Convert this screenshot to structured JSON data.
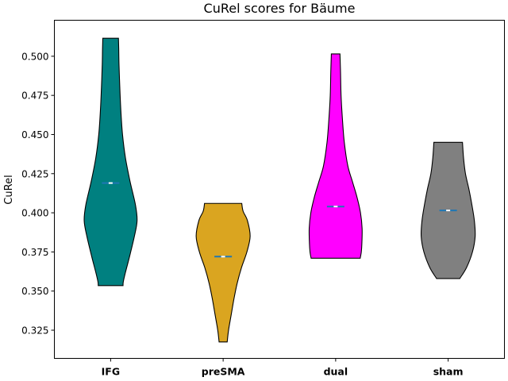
{
  "chart_data": {
    "type": "violin",
    "title": "CuRel scores for Bäume",
    "xlabel": "",
    "ylabel": "CuRel",
    "ylim": [
      0.307,
      0.523
    ],
    "yticks": [
      "0.325",
      "0.350",
      "0.375",
      "0.400",
      "0.425",
      "0.450",
      "0.475",
      "0.500"
    ],
    "grid": false,
    "median_color": "#1f77b4",
    "mean_marker_color": "#ffffff",
    "categories": [
      "IFG",
      "preSMA",
      "dual",
      "sham"
    ],
    "series": [
      {
        "category": "IFG",
        "color": "#008080",
        "min": 0.3535,
        "max": 0.5115,
        "median": 0.419,
        "profile": [
          [
            0.3535,
            0.46
          ],
          [
            0.356,
            0.47
          ],
          [
            0.362,
            0.55
          ],
          [
            0.372,
            0.7
          ],
          [
            0.385,
            0.88
          ],
          [
            0.395,
            0.98
          ],
          [
            0.405,
            0.92
          ],
          [
            0.42,
            0.72
          ],
          [
            0.435,
            0.55
          ],
          [
            0.45,
            0.44
          ],
          [
            0.465,
            0.38
          ],
          [
            0.48,
            0.34
          ],
          [
            0.495,
            0.31
          ],
          [
            0.505,
            0.3
          ],
          [
            0.5115,
            0.29
          ]
        ]
      },
      {
        "category": "preSMA",
        "color": "#DAA520",
        "min": 0.3175,
        "max": 0.406,
        "median": 0.372,
        "profile": [
          [
            0.3175,
            0.15
          ],
          [
            0.325,
            0.2
          ],
          [
            0.335,
            0.3
          ],
          [
            0.345,
            0.4
          ],
          [
            0.355,
            0.52
          ],
          [
            0.365,
            0.68
          ],
          [
            0.375,
            0.88
          ],
          [
            0.385,
            1.0
          ],
          [
            0.395,
            0.9
          ],
          [
            0.401,
            0.74
          ],
          [
            0.406,
            0.69
          ]
        ]
      },
      {
        "category": "dual",
        "color": "#FF00FF",
        "min": 0.371,
        "max": 0.5015,
        "median": 0.404,
        "profile": [
          [
            0.371,
            0.91
          ],
          [
            0.375,
            0.95
          ],
          [
            0.38,
            0.97
          ],
          [
            0.39,
            0.98
          ],
          [
            0.4,
            0.92
          ],
          [
            0.41,
            0.79
          ],
          [
            0.42,
            0.62
          ],
          [
            0.43,
            0.45
          ],
          [
            0.445,
            0.32
          ],
          [
            0.46,
            0.25
          ],
          [
            0.475,
            0.2
          ],
          [
            0.49,
            0.18
          ],
          [
            0.5015,
            0.16
          ]
        ]
      },
      {
        "category": "sham",
        "color": "#808080",
        "min": 0.358,
        "max": 0.445,
        "median": 0.4015,
        "profile": [
          [
            0.358,
            0.43
          ],
          [
            0.365,
            0.68
          ],
          [
            0.375,
            0.9
          ],
          [
            0.385,
            1.0
          ],
          [
            0.395,
            0.97
          ],
          [
            0.405,
            0.88
          ],
          [
            0.415,
            0.77
          ],
          [
            0.425,
            0.64
          ],
          [
            0.435,
            0.57
          ],
          [
            0.445,
            0.53
          ]
        ]
      }
    ]
  }
}
